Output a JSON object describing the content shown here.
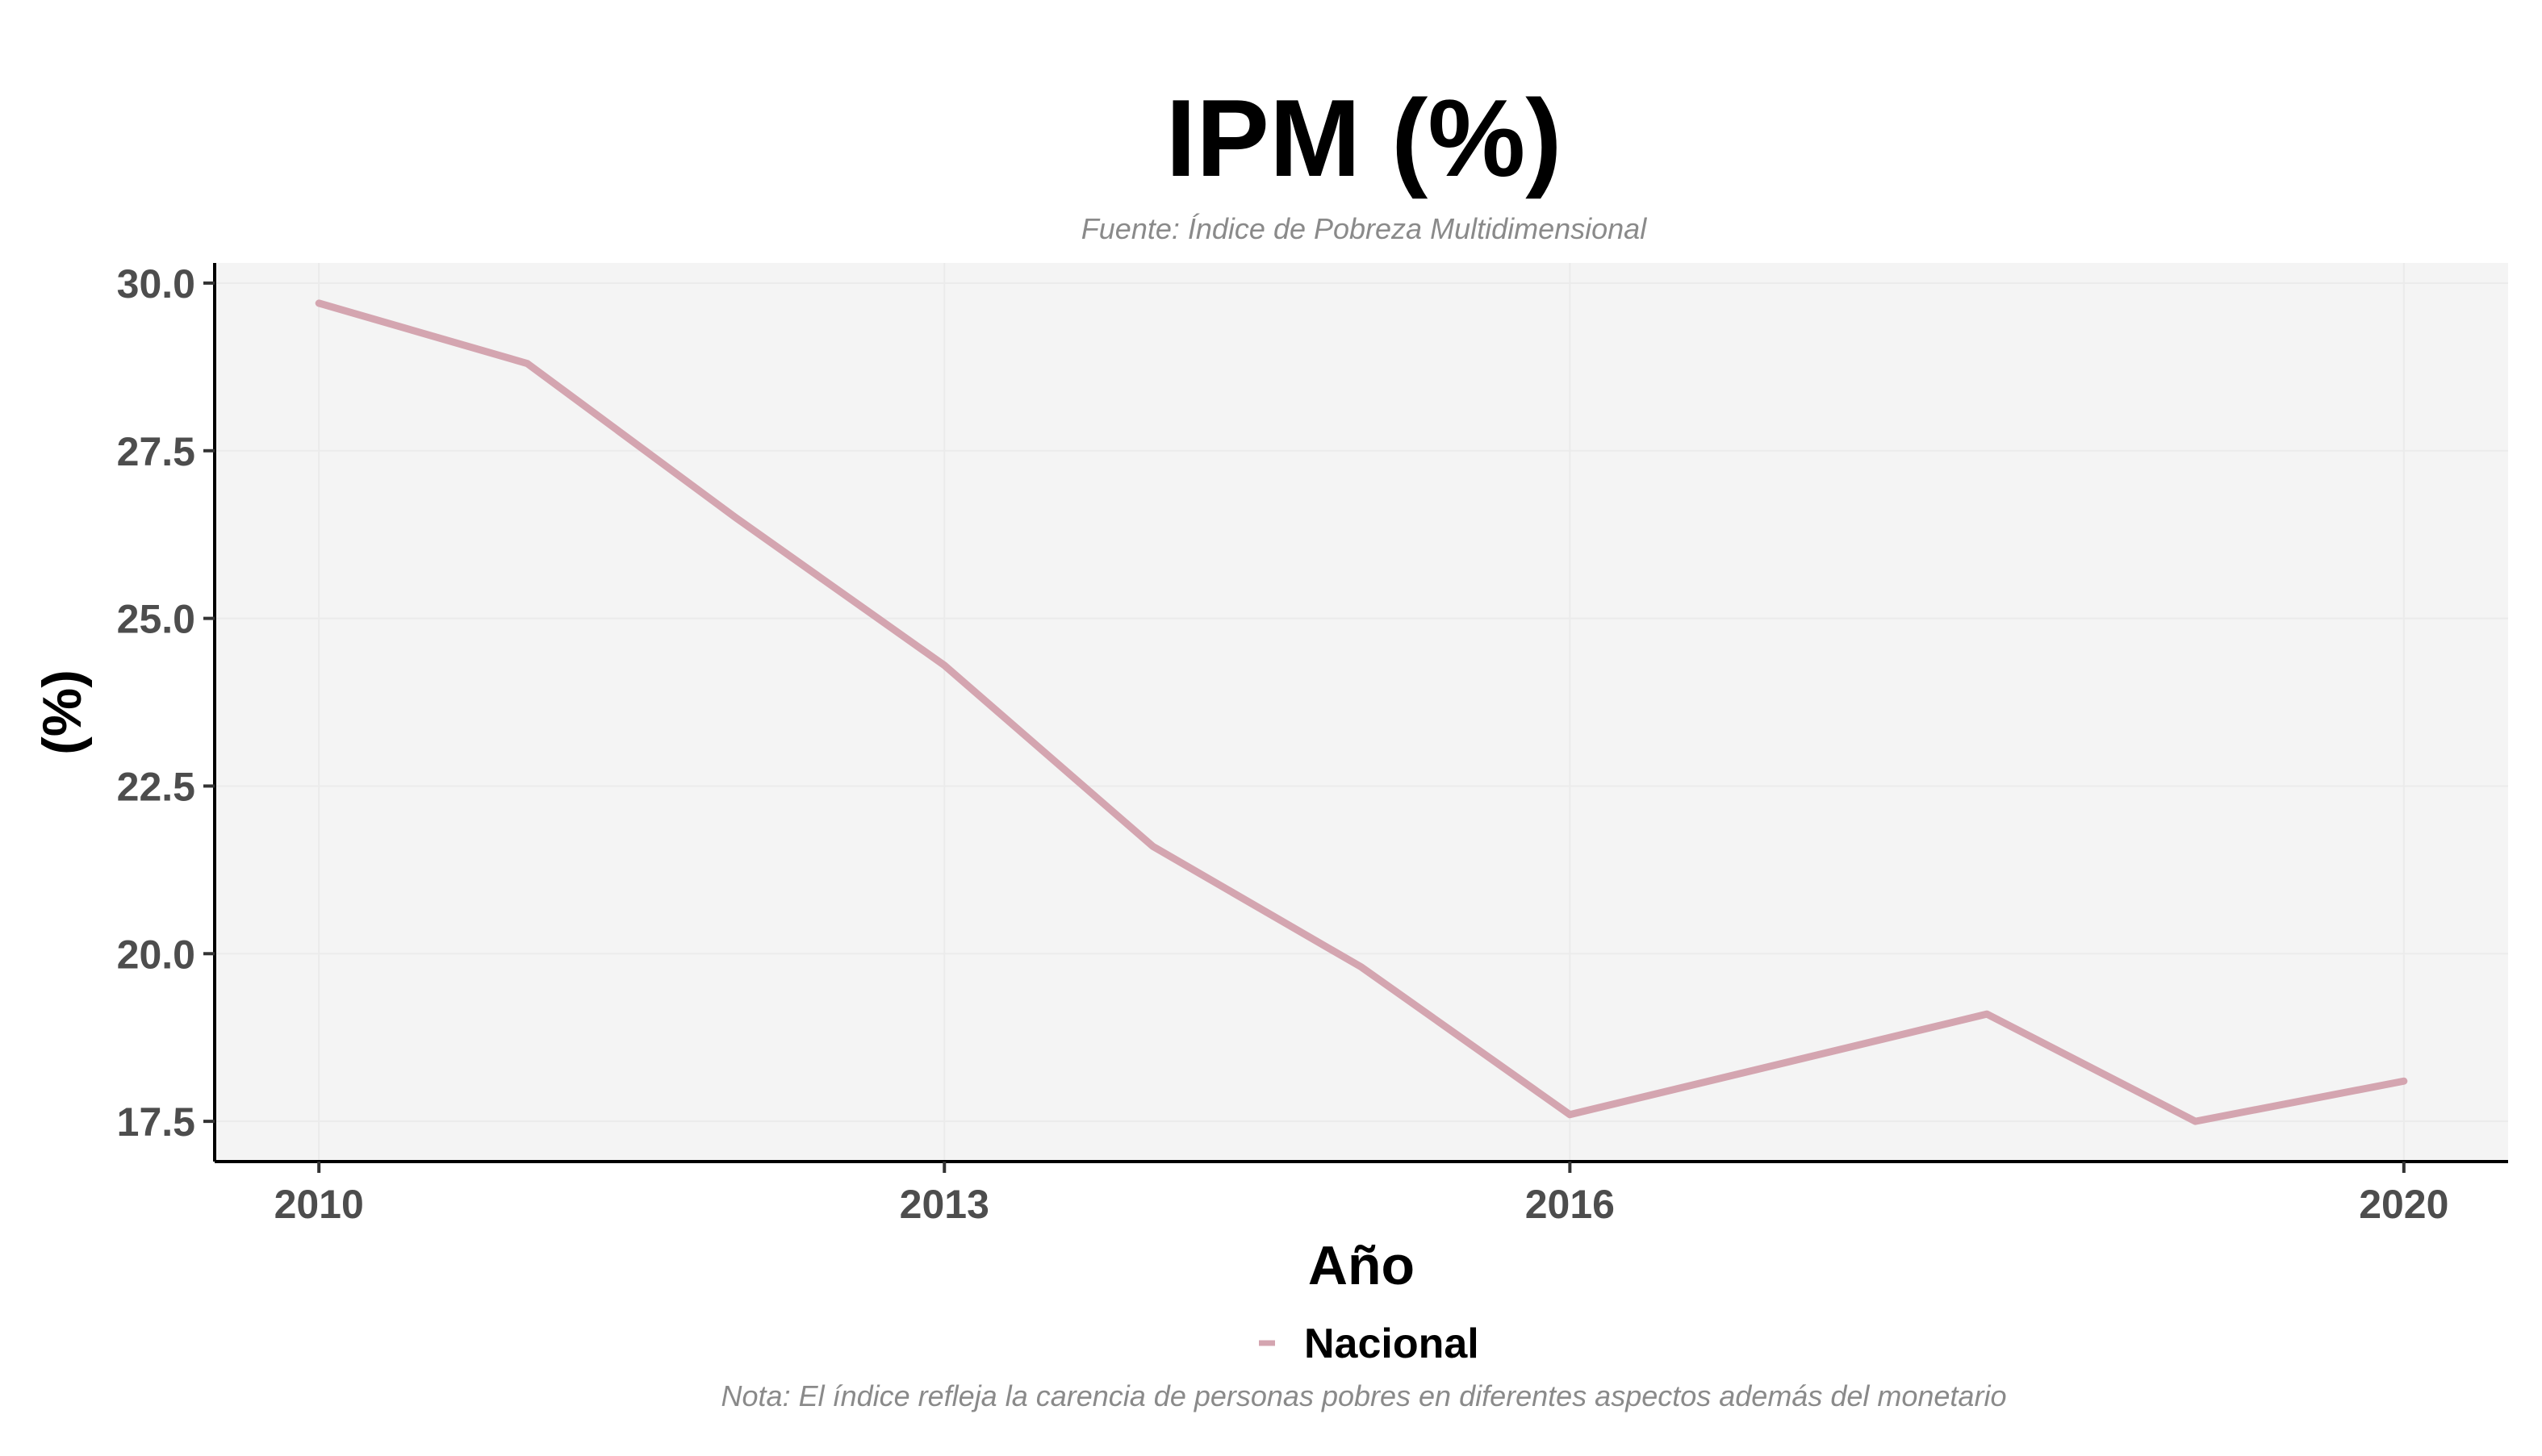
{
  "chart_data": {
    "type": "line",
    "title": "IPM (%)",
    "subtitle": "Fuente: Índice de Pobreza Multidimensional",
    "caption": "Nota: El índice refleja la carencia de personas pobres en diferentes aspectos además del monetario",
    "xlabel": "Año",
    "ylabel": "(%)",
    "x": [
      2010,
      2011,
      2012,
      2013,
      2014,
      2015,
      2016,
      2018,
      2019,
      2020
    ],
    "xlim": [
      2009.5,
      2020.5
    ],
    "ylim": [
      16.9,
      30.3
    ],
    "xticks": [
      2010,
      2013,
      2016,
      2020
    ],
    "xtick_labels": [
      "2010",
      "2013",
      "2016",
      "2020"
    ],
    "yticks": [
      17.5,
      20.0,
      22.5,
      25.0,
      27.5,
      30.0
    ],
    "ytick_labels": [
      "17.5",
      "20.0",
      "22.5",
      "25.0",
      "27.5",
      "30.0"
    ],
    "series": [
      {
        "name": "Nacional",
        "color": "#d4a5b0",
        "values": [
          29.7,
          28.8,
          26.5,
          24.3,
          21.6,
          19.8,
          17.6,
          19.1,
          17.5,
          18.1
        ]
      }
    ],
    "legend_position": "bottom",
    "grid": true,
    "panel_color": "#f4f4f4",
    "grid_color": "#ebebeb",
    "axis_color": "#000000"
  }
}
